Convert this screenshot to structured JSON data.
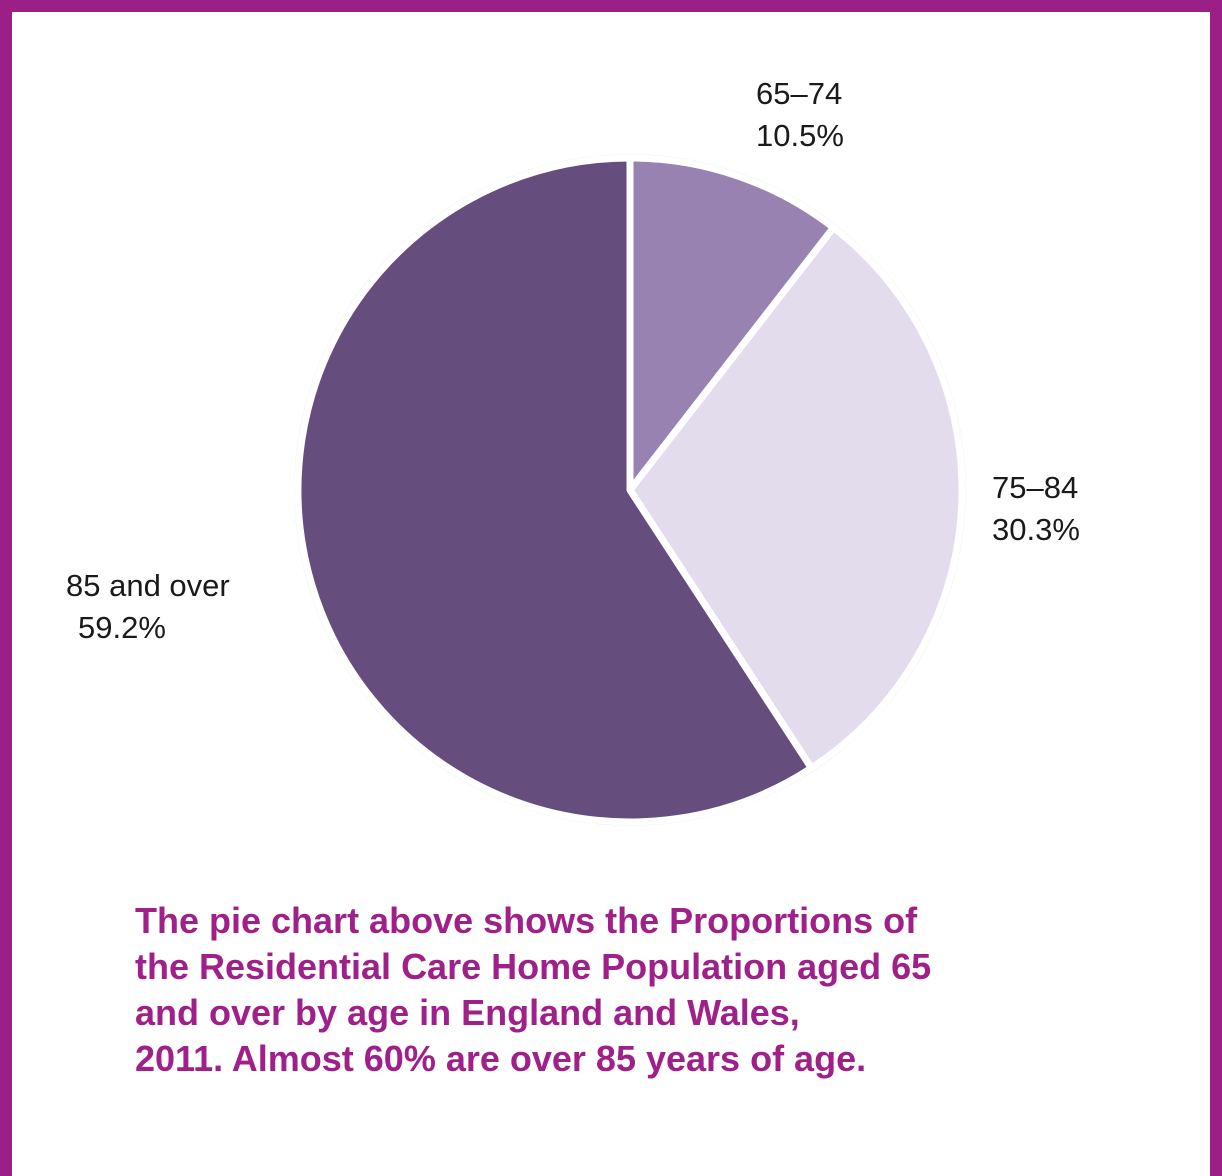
{
  "chart_data": {
    "type": "pie",
    "categories": [
      "65–74",
      "75–84",
      "85 and over"
    ],
    "values": [
      10.5,
      30.3,
      59.2
    ],
    "value_labels": [
      "10.5%",
      "30.3%",
      "59.2%"
    ],
    "colors": [
      "#9882b2",
      "#e3dced",
      "#654d7e"
    ],
    "start": "top, clockwise",
    "legend": "none"
  },
  "caption": {
    "lines": [
      "The pie chart above shows the Proportions of",
      "the Residential Care Home Population aged 65",
      "and over by age in England and Wales,",
      "2011. Almost 60% are over 85 years of age."
    ]
  },
  "colors": {
    "border": "#9b1f86",
    "caption_text": "#a0208a"
  }
}
